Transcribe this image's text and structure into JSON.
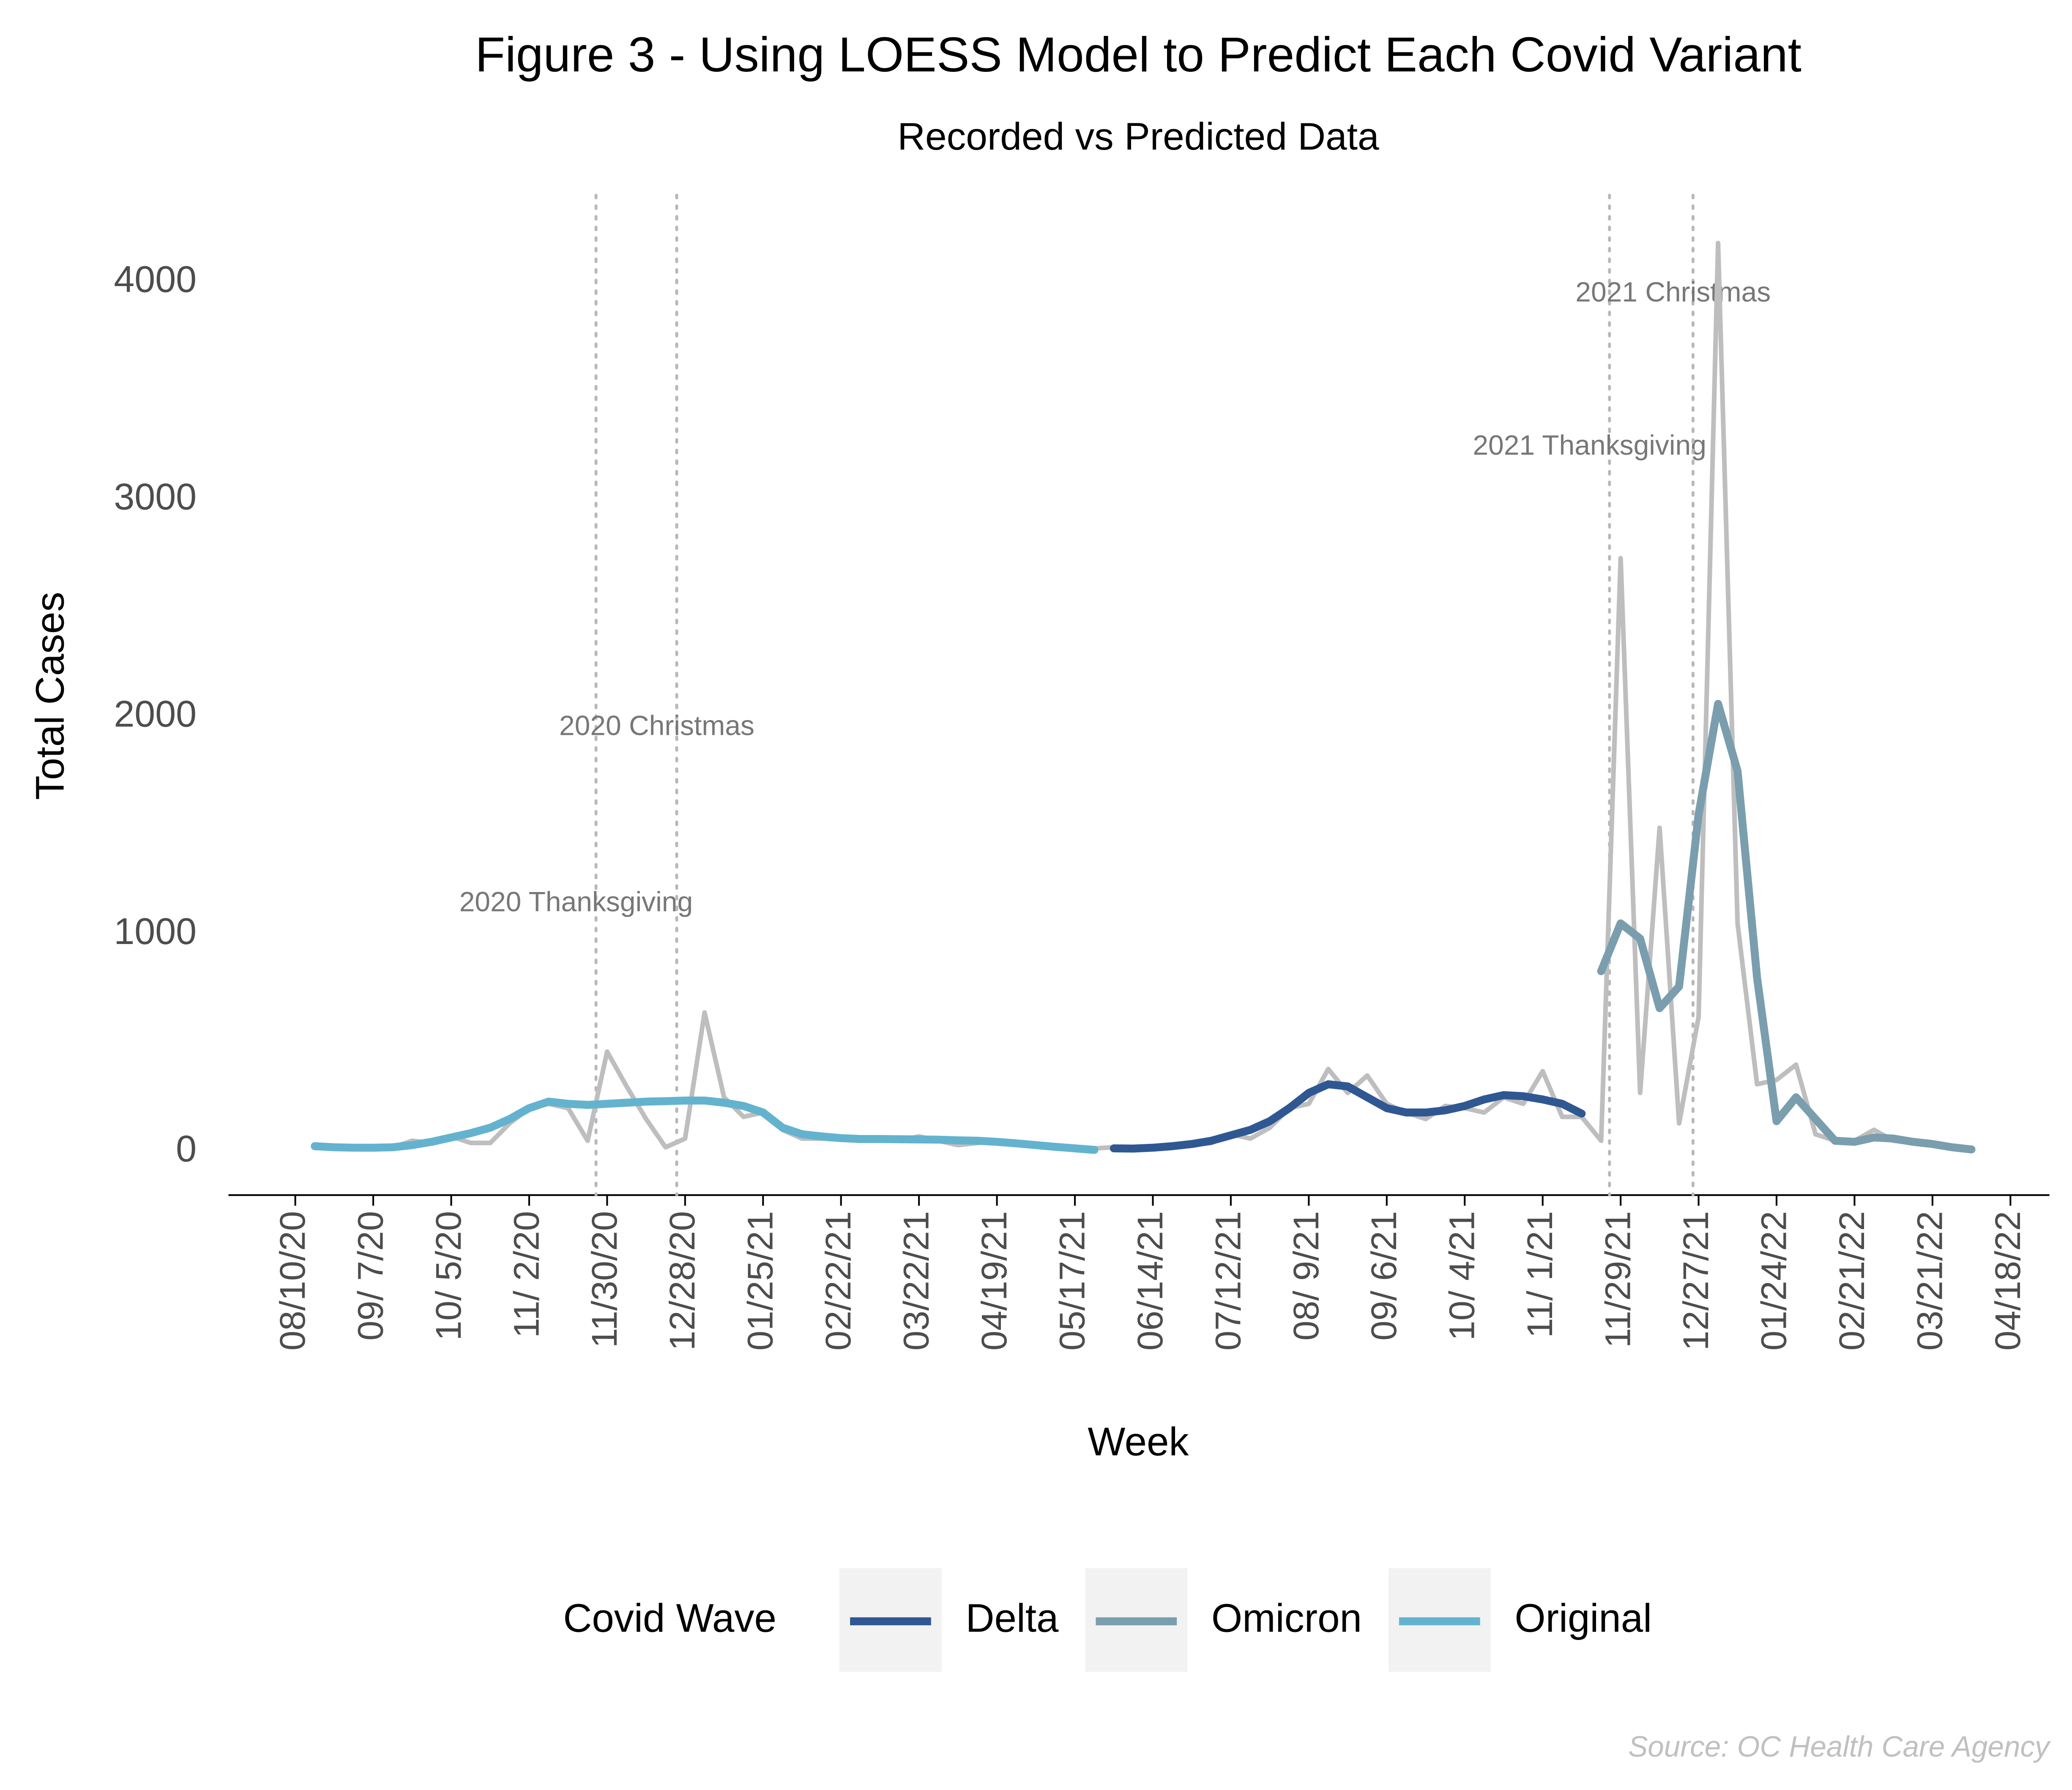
{
  "chart_data": {
    "type": "line",
    "title": "Figure 3 - Using LOESS Model to Predict Each Covid Variant",
    "subtitle": "Recorded vs Predicted Data",
    "x_label": "Week",
    "y_label": "Total Cases",
    "source": "Source: OC Health Care Agency",
    "legend_title": "Covid Wave",
    "legend_position": "bottom",
    "grid": false,
    "xlim": [
      "2020-07-17",
      "2022-05-02"
    ],
    "ylim": [
      -200,
      4400
    ],
    "yticks": [
      0,
      1000,
      2000,
      3000,
      4000
    ],
    "xticks": [
      {
        "value": "2020-08-10",
        "label": "08/10/20"
      },
      {
        "value": "2020-09-07",
        "label": "09/ 7/20"
      },
      {
        "value": "2020-10-05",
        "label": "10/ 5/20"
      },
      {
        "value": "2020-11-02",
        "label": "11/ 2/20"
      },
      {
        "value": "2020-11-30",
        "label": "11/30/20"
      },
      {
        "value": "2020-12-28",
        "label": "12/28/20"
      },
      {
        "value": "2021-01-25",
        "label": "01/25/21"
      },
      {
        "value": "2021-02-22",
        "label": "02/22/21"
      },
      {
        "value": "2021-03-22",
        "label": "03/22/21"
      },
      {
        "value": "2021-04-19",
        "label": "04/19/21"
      },
      {
        "value": "2021-05-17",
        "label": "05/17/21"
      },
      {
        "value": "2021-06-14",
        "label": "06/14/21"
      },
      {
        "value": "2021-07-12",
        "label": "07/12/21"
      },
      {
        "value": "2021-08-09",
        "label": "08/ 9/21"
      },
      {
        "value": "2021-09-06",
        "label": "09/ 6/21"
      },
      {
        "value": "2021-10-04",
        "label": "10/ 4/21"
      },
      {
        "value": "2021-11-01",
        "label": "11/ 1/21"
      },
      {
        "value": "2021-11-29",
        "label": "11/29/21"
      },
      {
        "value": "2021-12-27",
        "label": "12/27/21"
      },
      {
        "value": "2022-01-24",
        "label": "01/24/22"
      },
      {
        "value": "2022-02-21",
        "label": "02/21/22"
      },
      {
        "value": "2022-03-21",
        "label": "03/21/22"
      },
      {
        "value": "2022-04-18",
        "label": "04/18/22"
      }
    ],
    "x": [
      "2020-08-17",
      "2020-08-24",
      "2020-08-31",
      "2020-09-07",
      "2020-09-14",
      "2020-09-21",
      "2020-09-28",
      "2020-10-05",
      "2020-10-12",
      "2020-10-19",
      "2020-10-26",
      "2020-11-02",
      "2020-11-09",
      "2020-11-16",
      "2020-11-23",
      "2020-11-30",
      "2020-12-07",
      "2020-12-14",
      "2020-12-21",
      "2020-12-28",
      "2021-01-04",
      "2021-01-11",
      "2021-01-18",
      "2021-01-25",
      "2021-02-01",
      "2021-02-08",
      "2021-02-15",
      "2021-02-22",
      "2021-03-01",
      "2021-03-08",
      "2021-03-15",
      "2021-03-22",
      "2021-03-29",
      "2021-04-05",
      "2021-04-12",
      "2021-04-19",
      "2021-04-26",
      "2021-05-03",
      "2021-05-10",
      "2021-05-17",
      "2021-05-24",
      "2021-05-31",
      "2021-06-07",
      "2021-06-14",
      "2021-06-21",
      "2021-06-28",
      "2021-07-05",
      "2021-07-12",
      "2021-07-19",
      "2021-07-26",
      "2021-08-02",
      "2021-08-09",
      "2021-08-16",
      "2021-08-23",
      "2021-08-30",
      "2021-09-06",
      "2021-09-13",
      "2021-09-20",
      "2021-09-27",
      "2021-10-04",
      "2021-10-11",
      "2021-10-18",
      "2021-10-25",
      "2021-11-01",
      "2021-11-08",
      "2021-11-15",
      "2021-11-22",
      "2021-11-29",
      "2021-12-06",
      "2021-12-13",
      "2021-12-20",
      "2021-12-27",
      "2022-01-03",
      "2022-01-10",
      "2022-01-17",
      "2022-01-24",
      "2022-01-31",
      "2022-02-07",
      "2022-02-14",
      "2022-02-21",
      "2022-02-28",
      "2022-03-07",
      "2022-03-14",
      "2022-03-21",
      "2022-03-28",
      "2022-04-04"
    ],
    "recorded": {
      "color": "#bebebe",
      "values": [
        20,
        15,
        15,
        20,
        20,
        50,
        40,
        70,
        40,
        40,
        130,
        200,
        220,
        200,
        50,
        460,
        300,
        150,
        20,
        60,
        640,
        250,
        160,
        180,
        100,
        60,
        60,
        55,
        50,
        60,
        50,
        70,
        50,
        30,
        40,
        50,
        40,
        30,
        20,
        10,
        15,
        20,
        20,
        20,
        30,
        30,
        40,
        80,
        60,
        110,
        200,
        220,
        380,
        270,
        350,
        220,
        180,
        150,
        210,
        200,
        180,
        250,
        220,
        370,
        160,
        160,
        50,
        2730,
        270,
        1490,
        130,
        620,
        4180,
        1050,
        310,
        330,
        400,
        80,
        50,
        50,
        100,
        50,
        40,
        30,
        20,
        10
      ]
    },
    "series": [
      {
        "name": "Delta",
        "color": "#2f5893",
        "values": [
          null,
          null,
          null,
          null,
          null,
          null,
          null,
          null,
          null,
          null,
          null,
          null,
          null,
          null,
          null,
          null,
          null,
          null,
          null,
          null,
          null,
          null,
          null,
          null,
          null,
          null,
          null,
          null,
          null,
          null,
          null,
          null,
          null,
          null,
          null,
          null,
          null,
          null,
          null,
          null,
          null,
          15,
          14,
          18,
          25,
          35,
          50,
          75,
          100,
          140,
          200,
          270,
          310,
          300,
          250,
          200,
          180,
          180,
          190,
          210,
          240,
          260,
          255,
          240,
          220,
          175,
          null,
          null,
          null,
          null,
          null,
          null,
          null,
          null,
          null,
          null,
          null,
          null,
          null,
          null,
          null,
          null,
          null,
          null,
          null,
          null
        ]
      },
      {
        "name": "Omicron",
        "color": "#7a9eae",
        "values": [
          null,
          null,
          null,
          null,
          null,
          null,
          null,
          null,
          null,
          null,
          null,
          null,
          null,
          null,
          null,
          null,
          null,
          null,
          null,
          null,
          null,
          null,
          null,
          null,
          null,
          null,
          null,
          null,
          null,
          null,
          null,
          null,
          null,
          null,
          null,
          null,
          null,
          null,
          null,
          null,
          null,
          null,
          null,
          null,
          null,
          null,
          null,
          null,
          null,
          null,
          null,
          null,
          null,
          null,
          null,
          null,
          null,
          null,
          null,
          null,
          null,
          null,
          null,
          null,
          null,
          null,
          830,
          1050,
          980,
          660,
          760,
          1550,
          2060,
          1750,
          800,
          140,
          250,
          150,
          50,
          45,
          65,
          60,
          45,
          35,
          20,
          10
        ]
      },
      {
        "name": "Original",
        "color": "#63b3cf",
        "values": [
          25,
          20,
          18,
          18,
          20,
          30,
          45,
          65,
          85,
          110,
          150,
          200,
          230,
          220,
          215,
          220,
          225,
          230,
          232,
          235,
          235,
          225,
          210,
          180,
          110,
          80,
          70,
          62,
          58,
          58,
          57,
          56,
          55,
          52,
          50,
          45,
          38,
          30,
          22,
          15,
          8,
          null,
          null,
          null,
          null,
          null,
          null,
          null,
          null,
          null,
          null,
          null,
          null,
          null,
          null,
          null,
          null,
          null,
          null,
          null,
          null,
          null,
          null,
          null,
          null,
          null,
          null,
          null,
          null,
          null,
          null,
          null,
          null,
          null,
          null,
          null,
          null,
          null,
          null,
          null,
          null,
          null,
          null,
          null,
          null,
          null
        ]
      }
    ],
    "annotations": [
      {
        "x": "2020-11-26",
        "y": 1140,
        "label": "2020 Thanksgiving"
      },
      {
        "x": "2020-12-25",
        "y": 1950,
        "label": "2020 Christmas"
      },
      {
        "x": "2021-11-25",
        "y": 3240,
        "label": "2021 Thanksgiving"
      },
      {
        "x": "2021-12-25",
        "y": 3945,
        "label": "2021 Christmas"
      }
    ]
  }
}
